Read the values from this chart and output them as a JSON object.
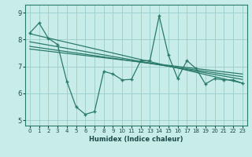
{
  "xlabel": "Humidex (Indice chaleur)",
  "bg_color": "#c8ede8",
  "grid_color": "#99cccc",
  "line_color": "#2a7a6a",
  "xlim": [
    -0.5,
    23.5
  ],
  "ylim": [
    4.8,
    9.3
  ],
  "yticks": [
    5,
    6,
    7,
    8,
    9
  ],
  "xticks": [
    0,
    1,
    2,
    3,
    4,
    5,
    6,
    7,
    8,
    9,
    10,
    11,
    12,
    13,
    14,
    15,
    16,
    17,
    18,
    19,
    20,
    21,
    22,
    23
  ],
  "main_x": [
    0,
    1,
    2,
    3,
    4,
    5,
    6,
    7,
    8,
    9,
    10,
    11,
    12,
    13,
    14,
    15,
    16,
    17,
    18,
    19,
    20,
    21,
    22,
    23
  ],
  "main_y": [
    8.25,
    8.62,
    8.05,
    7.82,
    6.45,
    5.5,
    5.22,
    5.32,
    6.82,
    6.72,
    6.5,
    6.52,
    7.22,
    7.22,
    8.88,
    7.42,
    6.55,
    7.22,
    6.92,
    6.35,
    6.55,
    6.5,
    6.5,
    6.38
  ],
  "trend1_x": [
    0,
    23
  ],
  "trend1_y": [
    8.22,
    6.38
  ],
  "trend2_x": [
    0,
    23
  ],
  "trend2_y": [
    7.92,
    6.52
  ],
  "trend3_x": [
    0,
    23
  ],
  "trend3_y": [
    7.75,
    6.62
  ],
  "trend4_x": [
    0,
    23
  ],
  "trend4_y": [
    7.65,
    6.72
  ]
}
